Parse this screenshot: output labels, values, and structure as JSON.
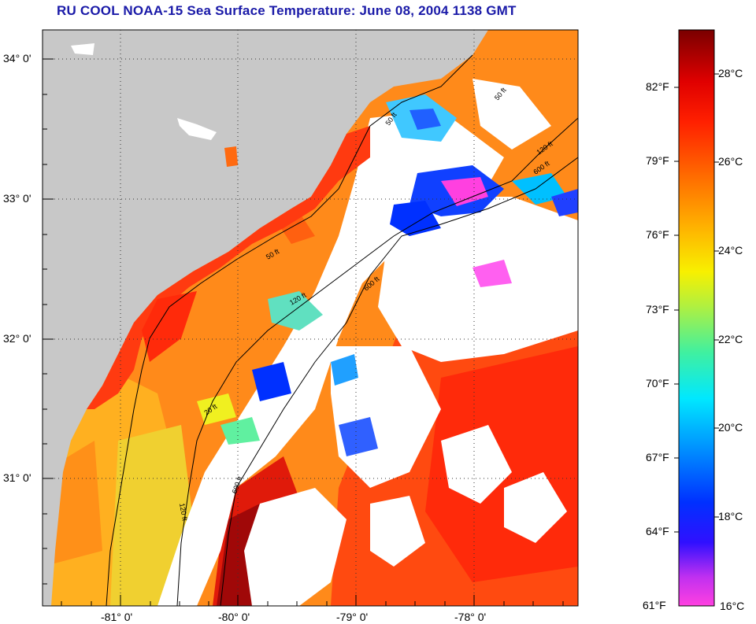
{
  "title": "RU COOL  NOAA-15  Sea Surface Temperature:  June 08, 2004 1138 GMT",
  "map": {
    "lat_labels": [
      "34° 0'",
      "33° 0'",
      "32° 0'",
      "31° 0'"
    ],
    "lon_labels": [
      "-81° 0'",
      "-80° 0'",
      "-79° 0'",
      "-78° 0'"
    ],
    "contour_labels": [
      "50 ft",
      "120 ft",
      "600 ft",
      "50 ft",
      "600 ft",
      "20 ft",
      "50 ft",
      "120 ft",
      "600 ft",
      "120 ft"
    ]
  },
  "colorbar": {
    "fahrenheit_labels": [
      "82°F",
      "79°F",
      "76°F",
      "73°F",
      "70°F",
      "67°F",
      "64°F",
      "61°F"
    ],
    "celsius_labels": [
      "28°C",
      "26°C",
      "24°C",
      "22°C",
      "20°C",
      "18°C",
      "16°C"
    ],
    "colors": [
      "#ff40e0",
      "#a020f0",
      "#0018ff",
      "#00a8ff",
      "#00f0f0",
      "#60f080",
      "#f0f000",
      "#ff9900",
      "#ff3000",
      "#ff0000",
      "#8a0000"
    ]
  }
}
